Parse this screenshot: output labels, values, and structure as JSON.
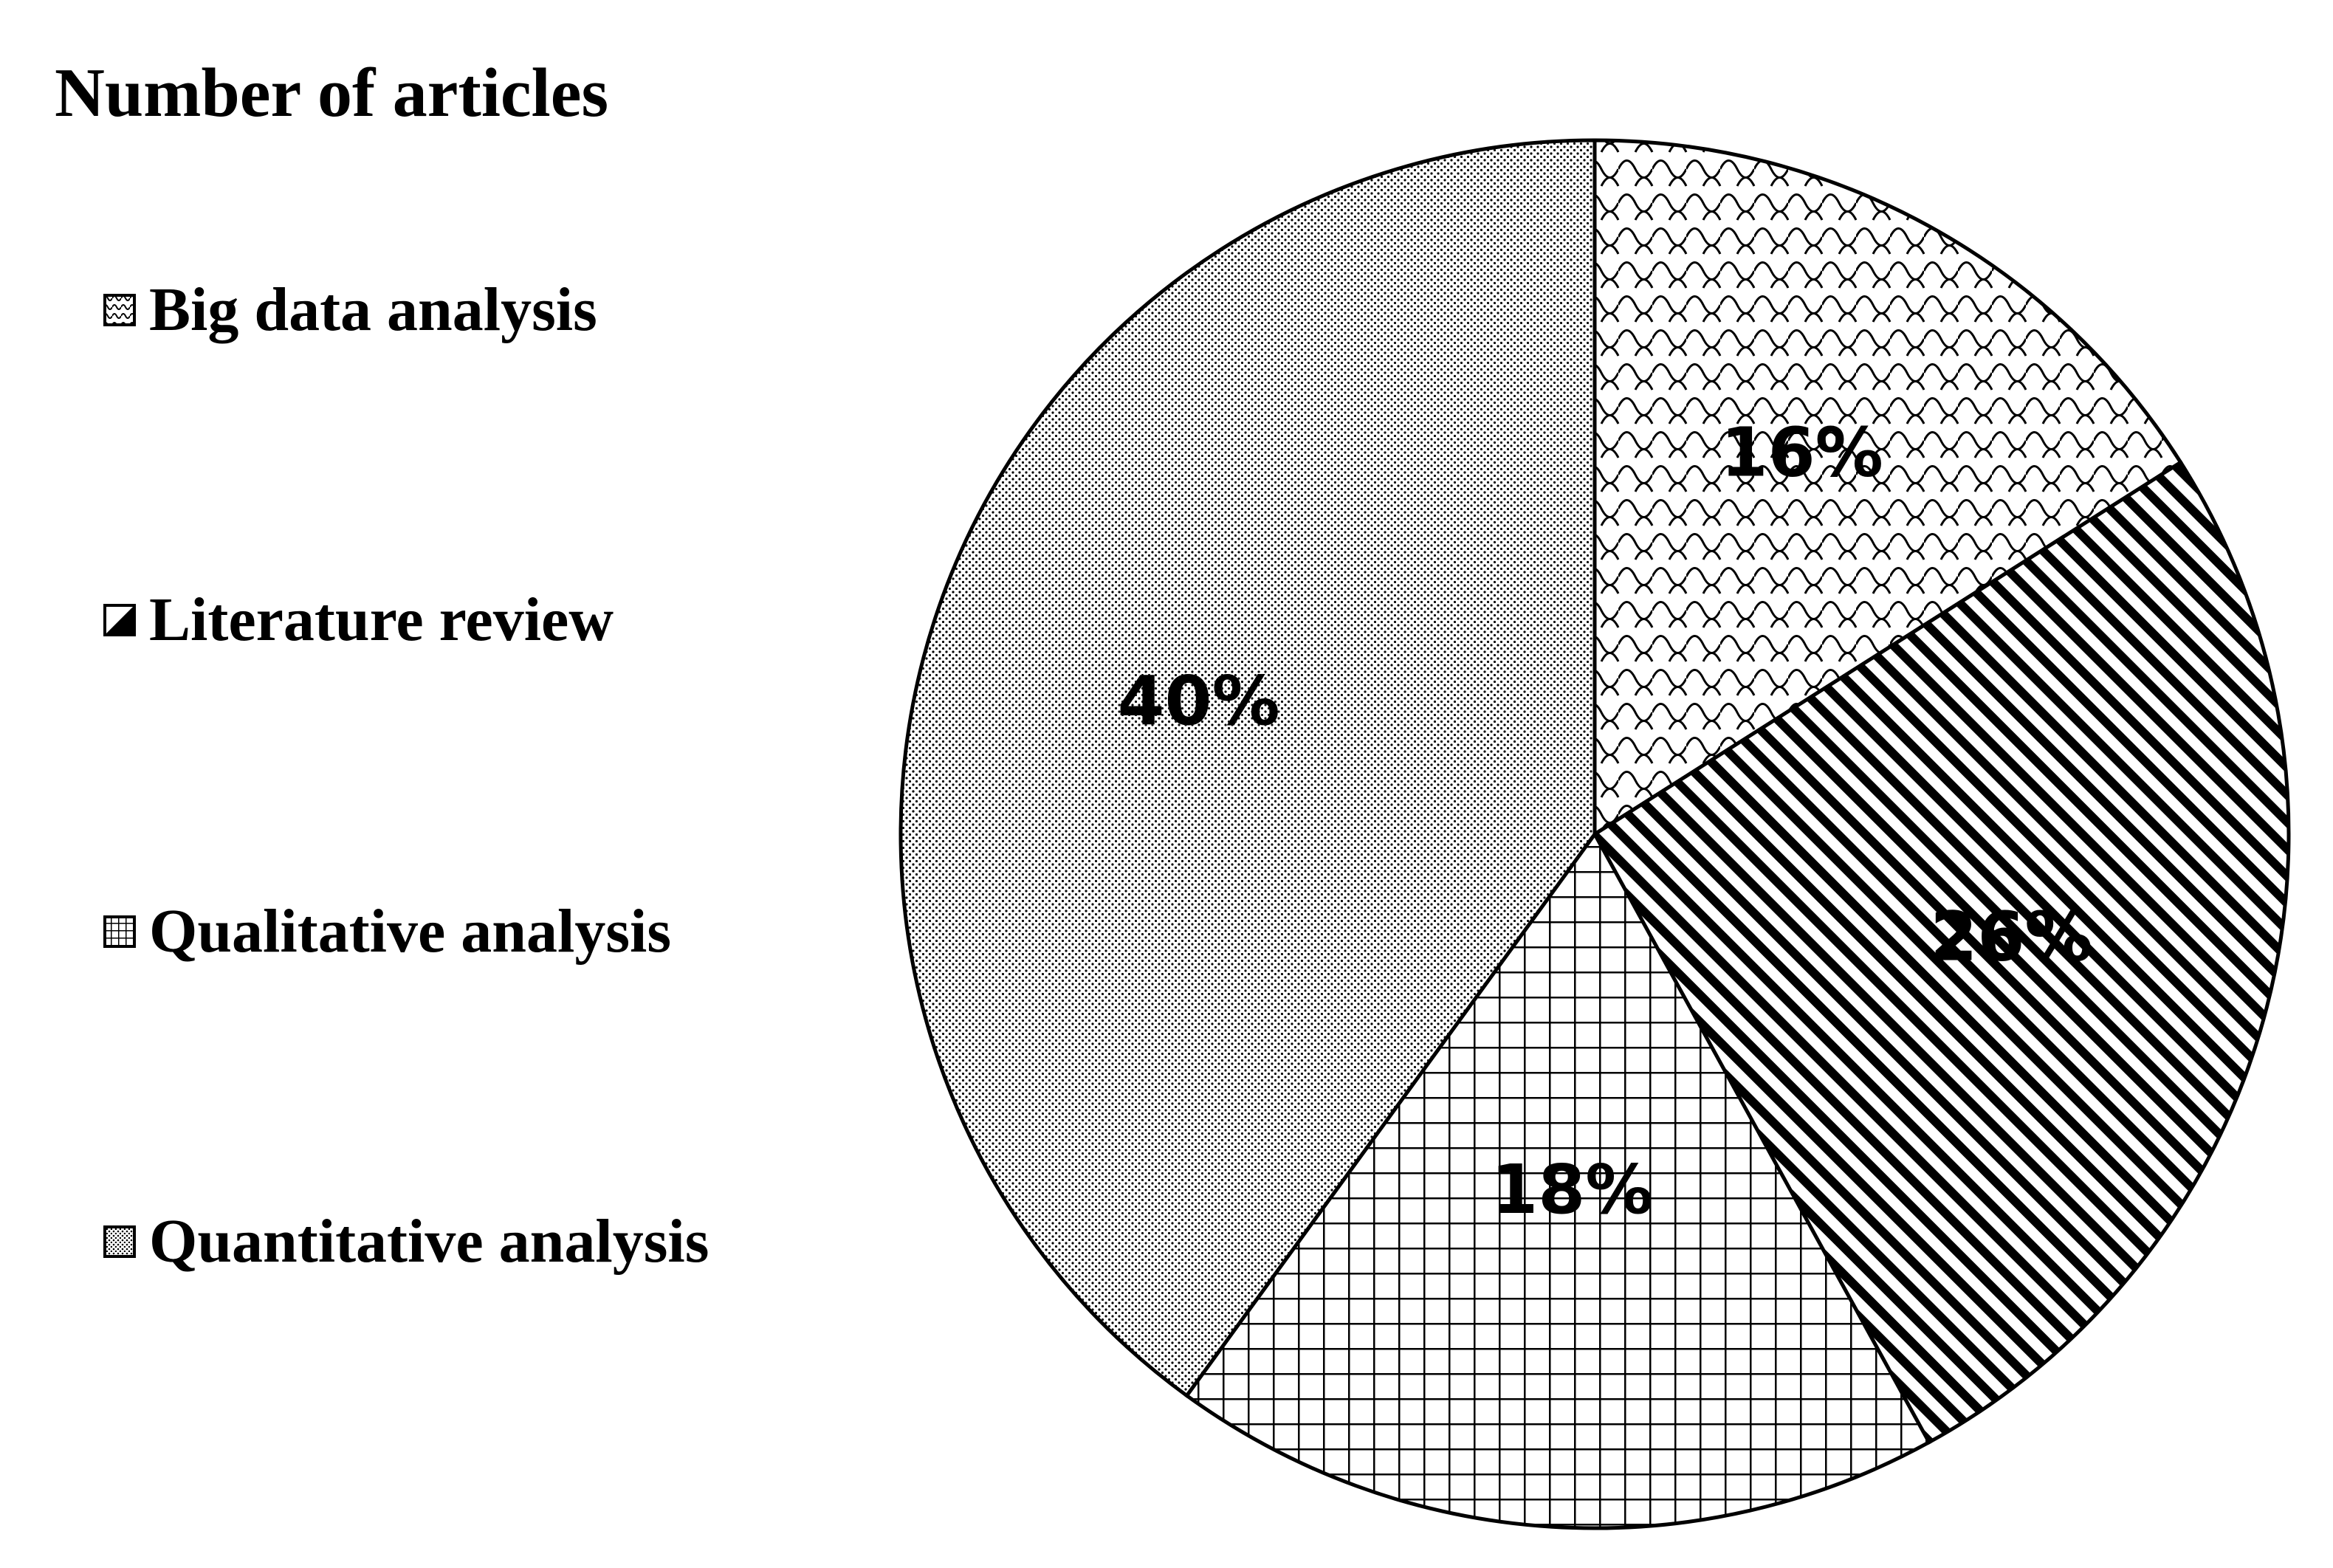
{
  "chart_data": {
    "type": "pie",
    "title": "Number of articles",
    "legend_position": "left",
    "slices": [
      {
        "name": "Big data analysis",
        "value": 16,
        "label": "16%",
        "pattern": "scales"
      },
      {
        "name": "Literature review",
        "value": 26,
        "label": "26%",
        "pattern": "diagonal"
      },
      {
        "name": "Qualitative analysis",
        "value": 18,
        "label": "18%",
        "pattern": "grid"
      },
      {
        "name": "Quantitative analysis",
        "value": 40,
        "label": "40%",
        "pattern": "dots"
      }
    ],
    "colors": {
      "ink": "#000000",
      "background": "#ffffff"
    }
  }
}
